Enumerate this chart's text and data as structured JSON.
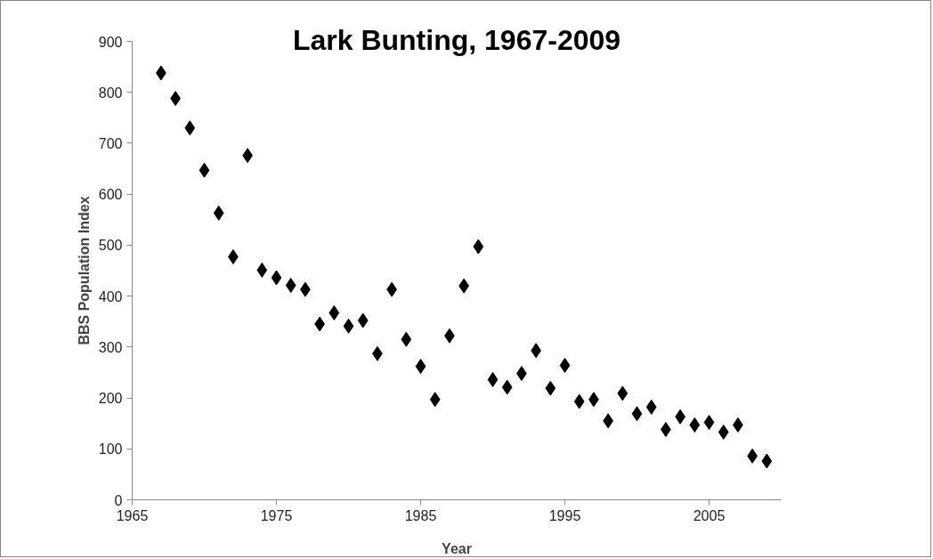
{
  "chart_data": {
    "type": "scatter",
    "title": "Lark Bunting, 1967-2009",
    "xlabel": "Year",
    "ylabel": "BBS Population Index",
    "x": [
      1967,
      1968,
      1969,
      1970,
      1971,
      1972,
      1973,
      1974,
      1975,
      1976,
      1977,
      1978,
      1979,
      1980,
      1981,
      1982,
      1983,
      1984,
      1985,
      1986,
      1987,
      1988,
      1989,
      1990,
      1991,
      1992,
      1993,
      1994,
      1995,
      1996,
      1997,
      1998,
      1999,
      2000,
      2001,
      2002,
      2003,
      2004,
      2005,
      2006,
      2007,
      2008,
      2009
    ],
    "series": [
      {
        "color": "#000000",
        "values": [
          838,
          788,
          730,
          647,
          563,
          477,
          676,
          451,
          436,
          421,
          413,
          345,
          367,
          341,
          352,
          287,
          413,
          315,
          262,
          197,
          322,
          420,
          497,
          236,
          221,
          248,
          293,
          219,
          264,
          193,
          197,
          155,
          209,
          169,
          182,
          138,
          163,
          147,
          152,
          133,
          147,
          86,
          76
        ]
      }
    ],
    "xlim": [
      1965,
      2010
    ],
    "xticks": [
      1965,
      1975,
      1985,
      1995,
      2005
    ],
    "ylim": [
      0,
      900
    ],
    "yticks": [
      0,
      100,
      200,
      300,
      400,
      500,
      600,
      700,
      800,
      900
    ],
    "grid": false,
    "marker": "diamond"
  }
}
